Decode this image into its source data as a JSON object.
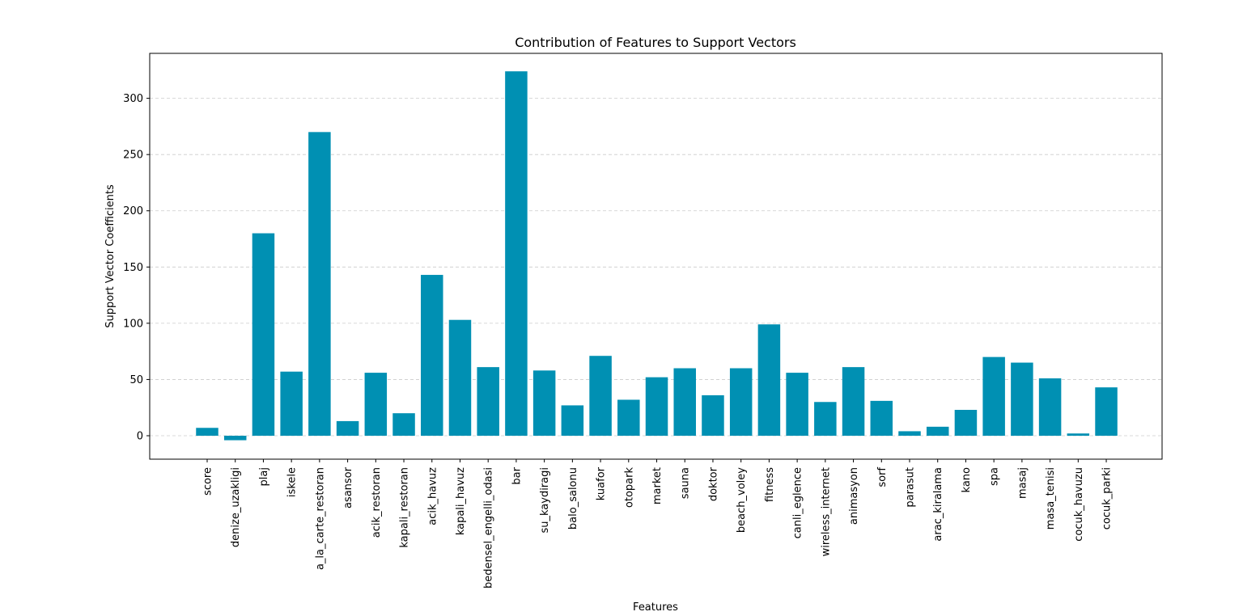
{
  "chart_data": {
    "type": "bar",
    "title": "Contribution of Features to Support Vectors",
    "xlabel": "Features",
    "ylabel": "Support Vector Coefficients",
    "ylim": [
      -21,
      340
    ],
    "yticks": [
      0,
      50,
      100,
      150,
      200,
      250,
      300
    ],
    "grid": "y-dashed",
    "bar_color": "#0090b3",
    "categories": [
      "score",
      "denize_uzakligi",
      "plaj",
      "iskele",
      "a_la_carte_restoran",
      "asansor",
      "acik_restoran",
      "kapali_restoran",
      "acik_havuz",
      "kapali_havuz",
      "bedensel_engelli_odasi",
      "bar",
      "su_kaydiragi",
      "balo_salonu",
      "kuafor",
      "otopark",
      "market",
      "sauna",
      "doktor",
      "beach_voley",
      "fitness",
      "canli_eglence",
      "wireless_internet",
      "animasyon",
      "sorf",
      "parasut",
      "arac_kiralama",
      "kano",
      "spa",
      "masaj",
      "masa_tenisi",
      "cocuk_havuzu",
      "cocuk_parki"
    ],
    "values": [
      7,
      -4,
      180,
      57,
      270,
      13,
      56,
      20,
      143,
      103,
      61,
      324,
      58,
      27,
      71,
      32,
      52,
      60,
      36,
      60,
      99,
      56,
      30,
      61,
      31,
      4,
      8,
      23,
      70,
      65,
      51,
      2,
      43
    ]
  }
}
